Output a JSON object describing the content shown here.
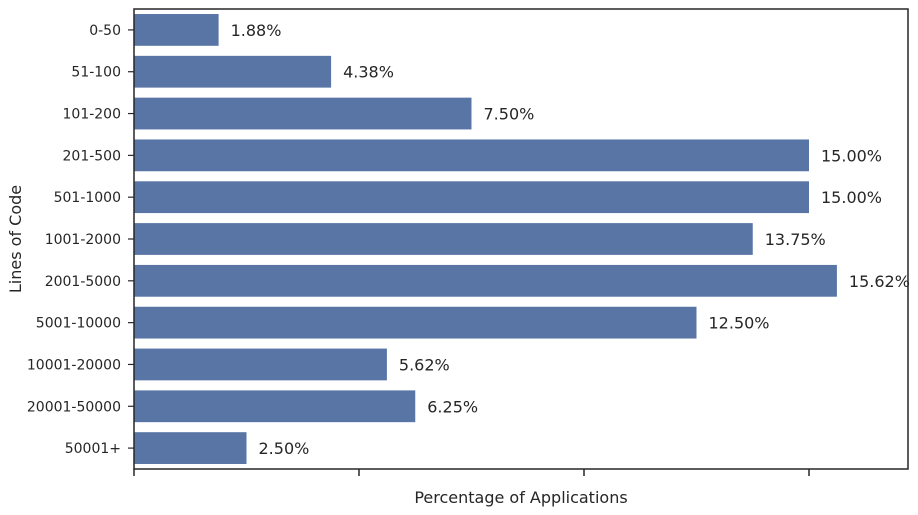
{
  "chart_data": {
    "type": "bar",
    "orientation": "horizontal",
    "categories": [
      "0-50",
      "51-100",
      "101-200",
      "201-500",
      "501-1000",
      "1001-2000",
      "2001-5000",
      "5001-10000",
      "10001-20000",
      "20001-50000",
      "50001+"
    ],
    "values": [
      1.88,
      4.38,
      7.5,
      15.0,
      15.0,
      13.75,
      15.62,
      12.5,
      5.62,
      6.25,
      2.5
    ],
    "data_labels": [
      "1.88%",
      "4.38%",
      "7.50%",
      "15.00%",
      "15.00%",
      "13.75%",
      "15.62%",
      "12.50%",
      "5.62%",
      "6.25%",
      "2.50%"
    ],
    "title": "",
    "xlabel": "Percentage of Applications",
    "ylabel": "Lines of Code",
    "xlim": [
      0,
      17.2
    ],
    "x_ticks": [
      0,
      5,
      10,
      15
    ],
    "x_tick_labels_shown": false,
    "grid": false,
    "bar_color": "#5875a5"
  }
}
